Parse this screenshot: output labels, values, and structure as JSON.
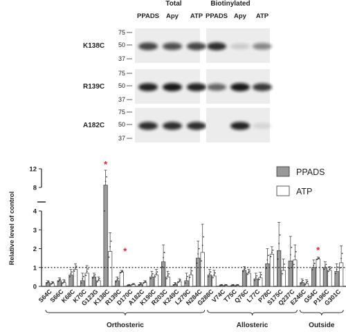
{
  "blot": {
    "group_total": "Total",
    "group_biotin": "Biotinylated",
    "lane_labels": [
      "PPADS",
      "Apy",
      "ATP",
      "PPADS",
      "Apy",
      "ATP"
    ],
    "panels": [
      {
        "mutant": "K138C",
        "markers": [
          "75",
          "50",
          "37"
        ],
        "total_bands": [
          0.75,
          0.7,
          0.75
        ],
        "biotin_bands": [
          0.85,
          0.15,
          0.45
        ]
      },
      {
        "mutant": "R139C",
        "markers": [
          "75",
          "50",
          "37"
        ],
        "total_bands": [
          0.9,
          0.95,
          0.9
        ],
        "biotin_bands": [
          0.6,
          0.95,
          0.8
        ]
      },
      {
        "mutant": "A182C",
        "markers": [
          "75",
          "50",
          "37"
        ],
        "total_bands": [
          0.85,
          0.85,
          0.85
        ],
        "biotin_bands": [
          0.0,
          0.9,
          0.1
        ]
      }
    ]
  },
  "chart_data": {
    "type": "bar",
    "ylabel": "Relative level of control",
    "yticks_lower": [
      "0",
      "1",
      "2",
      "3",
      "4"
    ],
    "yticks_upper": [
      "8",
      "12"
    ],
    "categories": [
      "S64C",
      "S66C",
      "K68C",
      "K70C",
      "G123G",
      "K138C",
      "R139C",
      "D170C",
      "A182C",
      "K190C",
      "R203C",
      "K249C",
      "L279C",
      "N284C",
      "G288C",
      "V74C",
      "T75C",
      "Q76C",
      "L77C",
      "P78C",
      "S175C",
      "Q237C",
      "E246C",
      "G54C",
      "P196C",
      "G301C"
    ],
    "series": [
      {
        "name": "PPADS",
        "color": "#999999",
        "values": [
          0.2,
          0.3,
          0.6,
          0.3,
          0.5,
          8.5,
          0.3,
          0.05,
          0.1,
          0.5,
          1.3,
          0.1,
          0.3,
          1.5,
          0.6,
          0.05,
          0.05,
          0.85,
          0.4,
          1.2,
          1.9,
          1.35,
          0.2,
          1.0,
          1.0,
          0.8
        ],
        "errors": [
          0.1,
          0.15,
          0.3,
          0.4,
          0.2,
          3.2,
          0.2,
          0.05,
          0.1,
          0.3,
          0.9,
          0.1,
          0.4,
          0.9,
          0.3,
          0.05,
          0.05,
          0.2,
          0.3,
          0.8,
          1.5,
          1.3,
          0.2,
          0.4,
          0.3,
          0.4
        ]
      },
      {
        "name": "ATP",
        "color": "#ffffff",
        "values": [
          0.15,
          0.2,
          0.9,
          0.7,
          0.3,
          1.85,
          0.75,
          0.1,
          0.2,
          0.6,
          0.5,
          0.25,
          0.6,
          1.8,
          0.55,
          0.05,
          0.05,
          0.7,
          0.45,
          1.7,
          0.85,
          1.4,
          0.15,
          1.45,
          0.85,
          1.25
        ],
        "errors": [
          0.1,
          0.15,
          0.3,
          0.4,
          0.2,
          1.0,
          0.1,
          0.05,
          0.1,
          0.3,
          0.3,
          0.15,
          0.4,
          1.5,
          0.3,
          0.05,
          0.05,
          0.2,
          0.3,
          0.4,
          0.6,
          0.8,
          0.2,
          0.1,
          0.2,
          0.9
        ]
      }
    ],
    "significance": [
      {
        "category": "K138C",
        "series": "PPADS",
        "label": "*"
      },
      {
        "category": "R139C",
        "series": "ATP",
        "label": "*"
      },
      {
        "category": "G54C",
        "series": "ATP",
        "label": "*"
      }
    ],
    "reference_line": 1,
    "groups": [
      {
        "label": "Orthosteric",
        "from": "S64C",
        "to": "N284C"
      },
      {
        "label": "Allosteric",
        "from": "G288C",
        "to": "Q237C"
      },
      {
        "label": "Outside",
        "from": "E246C",
        "to": "G301C"
      }
    ],
    "legend_position": "top-right",
    "significance_color": "#e02020"
  }
}
